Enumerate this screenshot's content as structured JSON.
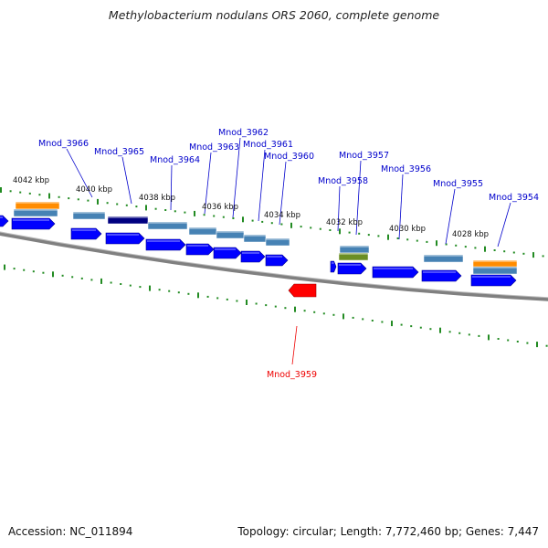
{
  "title": "Methylobacterium nodulans ORS 2060, complete genome",
  "accession_label": "Accession: NC_011894",
  "summary_label": "Topology: circular; Length: 7,772,460 bp; Genes: 7,447",
  "colors": {
    "forward_gene": "#0000ff",
    "selected_gene": "#ff0000",
    "backbone": "#808080",
    "tick": "#228b22",
    "label": "#0000cc",
    "selected_label": "#ee0000",
    "feature_light": "#4682b4",
    "feature_dark": "#000080",
    "feature_orange": "#ff8c00",
    "feature_olive": "#6b8e23"
  },
  "kbp_labels": [
    "4042 kbp",
    "4040 kbp",
    "4038 kbp",
    "4036 kbp",
    "4034 kbp",
    "4032 kbp",
    "4030 kbp",
    "4028 kbp"
  ],
  "gene_labels": [
    "Mnod_3966",
    "Mnod_3965",
    "Mnod_3964",
    "Mnod_3963",
    "Mnod_3962",
    "Mnod_3961",
    "Mnod_3960",
    "Mnod_3958",
    "Mnod_3957",
    "Mnod_3956",
    "Mnod_3955",
    "Mnod_3954"
  ],
  "selected_gene_label": "Mnod_3959"
}
